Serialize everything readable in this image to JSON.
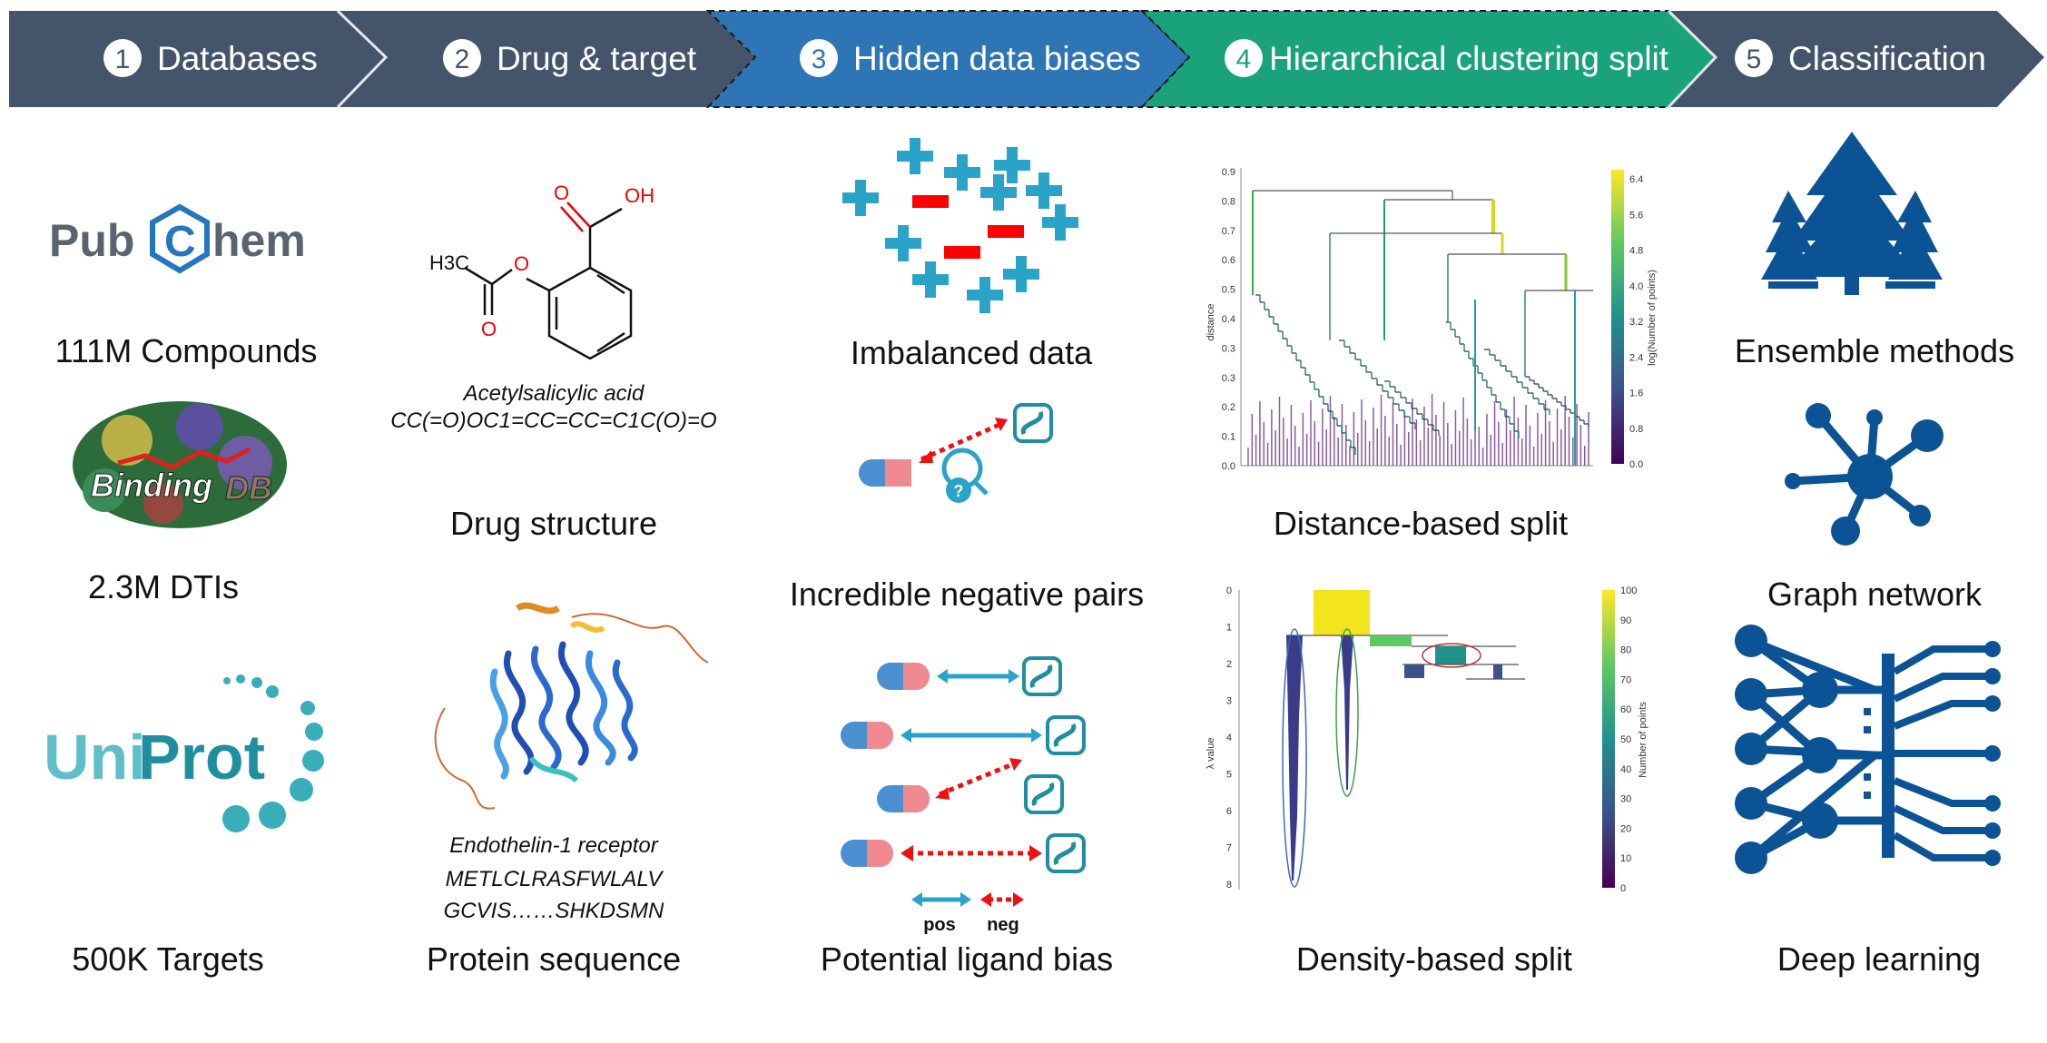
{
  "banner": {
    "steps": [
      {
        "num": "1",
        "label": "Databases",
        "color": "#44546a"
      },
      {
        "num": "2",
        "label": "Drug & target",
        "color": "#44546a"
      },
      {
        "num": "3",
        "label": "Hidden data biases",
        "color": "#2e75b6"
      },
      {
        "num": "4",
        "label": "Hierarchical clustering split",
        "color": "#1aa37a"
      },
      {
        "num": "5",
        "label": "Classification",
        "color": "#44546a"
      }
    ]
  },
  "databases": {
    "pubchem_logo": "PubChem",
    "pubchem_caption": "111M Compounds",
    "bindingdb_logo": "BindingDB",
    "bindingdb_caption": "2.3M DTIs",
    "uniprot_logo": "UniProt",
    "uniprot_caption": "500K Targets"
  },
  "drug_target": {
    "molecule_labels": {
      "oh": "OH",
      "o_ring": "O",
      "h3c": "H3C",
      "o_carbonyl": "O",
      "o_acid": "O"
    },
    "drug_name": "Acetylsalicylic acid",
    "drug_smiles": "CC(=O)OC1=CC=CC=C1C(O)=O",
    "drug_caption": "Drug structure",
    "protein_name": "Endothelin-1 receptor",
    "protein_seq_line1": "METLCLRASFWLALV",
    "protein_seq_line2": "GCVIS……SHKDSMN",
    "protein_caption": "Protein sequence"
  },
  "biases": {
    "imbalanced_caption": "Imbalanced data",
    "negative_caption": "Incredible negative pairs",
    "question_mark": "?",
    "ligand_caption": "Potential ligand bias",
    "legend_pos": "pos",
    "legend_neg": "neg",
    "colors": {
      "positive": "#2aa3c9",
      "negative": "#ff0000"
    }
  },
  "clustering": {
    "distance_caption": "Distance-based split",
    "density_caption": "Density-based split",
    "dendro": {
      "ylabel": "distance",
      "yticks": [
        "0.0",
        "0.1",
        "0.2",
        "0.3",
        "0.3",
        "0.4",
        "0.5",
        "0.6",
        "0.7",
        "0.8",
        "0.9"
      ],
      "colorbar_label": "log(Number of points)",
      "colorbar_ticks": [
        "0.0",
        "0.8",
        "1.6",
        "2.4",
        "3.2",
        "4.0",
        "4.8",
        "5.6",
        "6.4"
      ]
    },
    "condensed": {
      "ylabel": "λ value",
      "yticks": [
        "0",
        "1",
        "2",
        "3",
        "4",
        "5",
        "6",
        "7",
        "8"
      ],
      "colorbar_label": "Number of points",
      "colorbar_ticks": [
        "0",
        "10",
        "20",
        "30",
        "40",
        "50",
        "60",
        "70",
        "80",
        "90",
        "100"
      ]
    }
  },
  "classification": {
    "ensemble_caption": "Ensemble methods",
    "graph_caption": "Graph network",
    "deep_caption": "Deep learning",
    "icon_color": "#0b5394"
  }
}
